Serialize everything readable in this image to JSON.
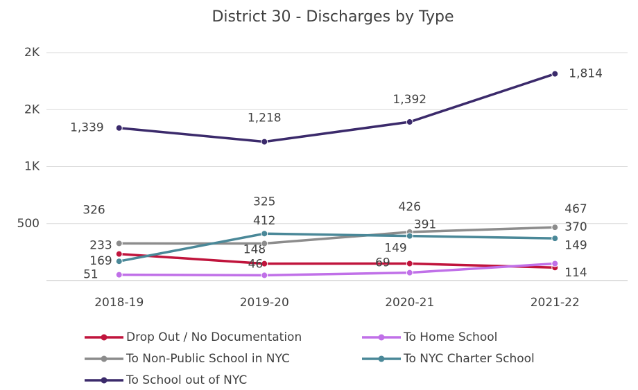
{
  "chart_data": {
    "type": "line",
    "title": "District 30 - Discharges by Type",
    "categories": [
      "2018-19",
      "2019-20",
      "2020-21",
      "2021-22"
    ],
    "series": [
      {
        "name": "Drop Out / No Documentation",
        "color": "#c0143c",
        "values": [
          233,
          148,
          149,
          114
        ]
      },
      {
        "name": "To Home School",
        "color": "#c070e8",
        "values": [
          51,
          46,
          69,
          149
        ]
      },
      {
        "name": "To Non-Public School in NYC",
        "color": "#8c8c8c",
        "values": [
          326,
          325,
          426,
          467
        ]
      },
      {
        "name": "To NYC Charter School",
        "color": "#4a8898",
        "values": [
          169,
          412,
          391,
          370
        ]
      },
      {
        "name": "To School out of NYC",
        "color": "#3b2a6b",
        "values": [
          1339,
          1218,
          1392,
          1814
        ],
        "value_labels": [
          "1,339",
          "1,218",
          "1,392",
          "1,814"
        ]
      }
    ],
    "ylim": [
      0,
      2000
    ],
    "yticks": [
      500,
      {
        "value": 1000,
        "label": "1K"
      },
      {
        "value": 1500,
        "label": "2K"
      },
      {
        "value": 2000,
        "label": "2K"
      }
    ],
    "grid": true
  }
}
